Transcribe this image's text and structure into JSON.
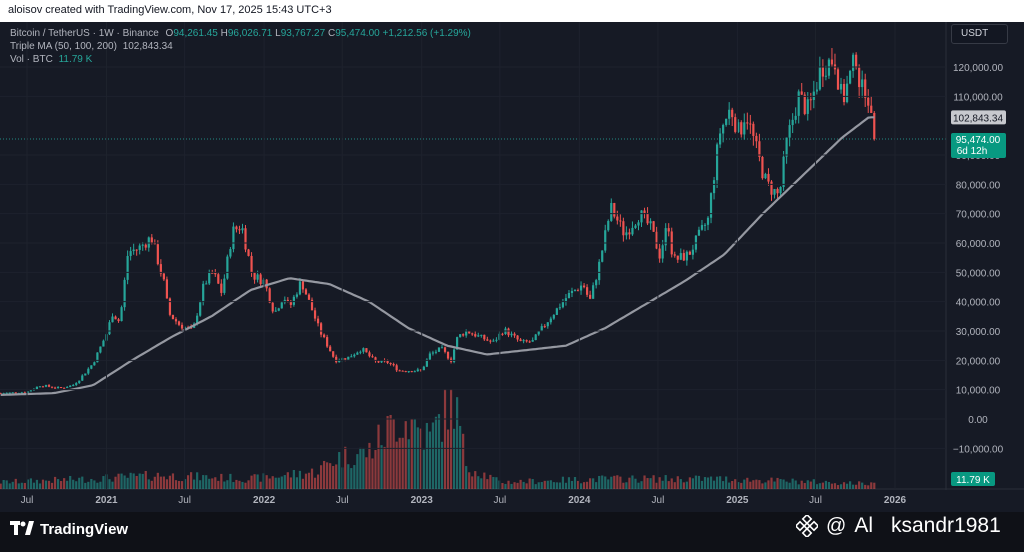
{
  "header": {
    "text": "aloisov created with TradingView.com, Nov 17, 2025 15:43 UTC+3"
  },
  "legend": {
    "symbol": "Bitcoin / TetherUS · 1W · Binance",
    "o_label": "O",
    "o": "94,261.45",
    "h_label": "H",
    "h": "96,026.71",
    "l_label": "L",
    "l": "93,767.27",
    "c_label": "C",
    "c": "95,474.00",
    "change": "+1,212.56 (+1.29%)",
    "ma_label": "Triple MA (50, 100, 200)",
    "ma_value": "102,843.34",
    "vol_label": "Vol · BTC",
    "vol_value": "11.79 K"
  },
  "currency": "USDT",
  "colors": {
    "up": "#26a69a",
    "down": "#ef5350",
    "ma": "#9598a1",
    "background": "#161a25",
    "price_tag": "#089981"
  },
  "price_tag": {
    "value": "95,474.00",
    "countdown": "6d 12h"
  },
  "ma_tag": {
    "value": "102,843.34"
  },
  "vol_tag": {
    "value": "11.79 K"
  },
  "footer": {
    "brand": "TradingView",
    "watermark_at": "@",
    "watermark_name1": "Al",
    "watermark_name2": "ksandr1981"
  },
  "chart_data": {
    "type": "candlestick",
    "title": "Bitcoin / TetherUS · 1W · Binance",
    "ylim": [
      -20000,
      130000
    ],
    "y_ticks": [
      120000,
      110000,
      90000,
      80000,
      70000,
      60000,
      50000,
      40000,
      30000,
      20000,
      10000,
      0,
      -10000
    ],
    "y_tick_labels": [
      "120,000.00",
      "110,000.00",
      "90,000.00",
      "80,000.00",
      "70,000.00",
      "60,000.00",
      "50,000.00",
      "40,000.00",
      "30,000.00",
      "20,000.00",
      "10,000.00",
      "0.00",
      "−10,000.00"
    ],
    "x_ticks": [
      {
        "date": "2020-07-01",
        "label": "Jul"
      },
      {
        "date": "2021-01-01",
        "label": "2021"
      },
      {
        "date": "2021-07-01",
        "label": "Jul"
      },
      {
        "date": "2022-01-01",
        "label": "2022"
      },
      {
        "date": "2022-07-01",
        "label": "Jul"
      },
      {
        "date": "2023-01-01",
        "label": "2023"
      },
      {
        "date": "2023-07-01",
        "label": "Jul"
      },
      {
        "date": "2024-01-01",
        "label": "2024"
      },
      {
        "date": "2024-07-01",
        "label": "Jul"
      },
      {
        "date": "2025-01-01",
        "label": "2025"
      },
      {
        "date": "2025-07-01",
        "label": "Jul"
      },
      {
        "date": "2026-01-01",
        "label": "2026"
      }
    ],
    "price_path": [
      [
        "2020-05-01",
        8800
      ],
      [
        "2020-07-01",
        9200
      ],
      [
        "2020-08-01",
        11500
      ],
      [
        "2020-09-15",
        10500
      ],
      [
        "2020-10-15",
        11500
      ],
      [
        "2020-11-01",
        13800
      ],
      [
        "2020-12-01",
        19000
      ],
      [
        "2021-01-01",
        29000
      ],
      [
        "2021-01-15",
        36000
      ],
      [
        "2021-02-01",
        33000
      ],
      [
        "2021-02-20",
        57000
      ],
      [
        "2021-03-15",
        58000
      ],
      [
        "2021-04-15",
        62000
      ],
      [
        "2021-05-15",
        46000
      ],
      [
        "2021-05-25",
        36000
      ],
      [
        "2021-06-20",
        32000
      ],
      [
        "2021-07-20",
        30000
      ],
      [
        "2021-08-15",
        46000
      ],
      [
        "2021-09-05",
        50000
      ],
      [
        "2021-09-25",
        43000
      ],
      [
        "2021-10-20",
        64000
      ],
      [
        "2021-11-10",
        66000
      ],
      [
        "2021-12-05",
        49000
      ],
      [
        "2022-01-01",
        47000
      ],
      [
        "2022-01-25",
        36000
      ],
      [
        "2022-02-15",
        42000
      ],
      [
        "2022-03-01",
        38000
      ],
      [
        "2022-03-28",
        47000
      ],
      [
        "2022-04-15",
        40000
      ],
      [
        "2022-05-10",
        30000
      ],
      [
        "2022-06-15",
        20000
      ],
      [
        "2022-07-15",
        21000
      ],
      [
        "2022-08-15",
        24000
      ],
      [
        "2022-09-15",
        19500
      ],
      [
        "2022-10-15",
        19300
      ],
      [
        "2022-11-10",
        16500
      ],
      [
        "2022-12-31",
        16500
      ],
      [
        "2023-01-20",
        22000
      ],
      [
        "2023-02-15",
        24000
      ],
      [
        "2023-03-10",
        20000
      ],
      [
        "2023-03-25",
        28000
      ],
      [
        "2023-04-15",
        30000
      ],
      [
        "2023-06-15",
        26000
      ],
      [
        "2023-07-10",
        30500
      ],
      [
        "2023-08-20",
        26000
      ],
      [
        "2023-09-15",
        26500
      ],
      [
        "2023-10-25",
        34500
      ],
      [
        "2023-12-05",
        42000
      ],
      [
        "2024-01-10",
        46000
      ],
      [
        "2024-01-25",
        40000
      ],
      [
        "2024-02-15",
        52000
      ],
      [
        "2024-03-14",
        72000
      ],
      [
        "2024-04-15",
        63000
      ],
      [
        "2024-05-20",
        70000
      ],
      [
        "2024-06-15",
        65000
      ],
      [
        "2024-07-05",
        56000
      ],
      [
        "2024-07-25",
        67000
      ],
      [
        "2024-08-05",
        54000
      ],
      [
        "2024-09-10",
        56000
      ],
      [
        "2024-10-25",
        68000
      ],
      [
        "2024-11-12",
        88000
      ],
      [
        "2024-11-22",
        98000
      ],
      [
        "2024-12-17",
        106000
      ],
      [
        "2025-01-05",
        97000
      ],
      [
        "2025-01-20",
        105000
      ],
      [
        "2025-02-25",
        86000
      ],
      [
        "2025-03-10",
        80000
      ],
      [
        "2025-04-08",
        76000
      ],
      [
        "2025-04-25",
        94000
      ],
      [
        "2025-05-22",
        110000
      ],
      [
        "2025-06-15",
        105000
      ],
      [
        "2025-07-14",
        120000
      ],
      [
        "2025-08-14",
        123000
      ],
      [
        "2025-09-01",
        108000
      ],
      [
        "2025-09-15",
        115000
      ],
      [
        "2025-10-06",
        125000
      ],
      [
        "2025-10-12",
        111000
      ],
      [
        "2025-10-28",
        114000
      ],
      [
        "2025-11-07",
        101000
      ],
      [
        "2025-11-17",
        95474
      ]
    ],
    "ma_path": [
      [
        "2020-05-01",
        8200
      ],
      [
        "2020-09-01",
        8800
      ],
      [
        "2020-12-01",
        11500
      ],
      [
        "2021-03-01",
        20000
      ],
      [
        "2021-06-01",
        28000
      ],
      [
        "2021-09-01",
        35000
      ],
      [
        "2021-12-01",
        44000
      ],
      [
        "2022-03-01",
        48000
      ],
      [
        "2022-06-01",
        46000
      ],
      [
        "2022-09-01",
        40000
      ],
      [
        "2022-12-01",
        31000
      ],
      [
        "2023-03-01",
        25000
      ],
      [
        "2023-06-01",
        22000
      ],
      [
        "2023-09-01",
        23500
      ],
      [
        "2023-12-01",
        25000
      ],
      [
        "2024-03-01",
        31000
      ],
      [
        "2024-06-01",
        39000
      ],
      [
        "2024-09-01",
        47000
      ],
      [
        "2024-12-01",
        56000
      ],
      [
        "2025-03-01",
        70000
      ],
      [
        "2025-06-01",
        83000
      ],
      [
        "2025-09-01",
        96000
      ],
      [
        "2025-11-01",
        102843
      ],
      [
        "2025-11-17",
        102843
      ]
    ],
    "volume_path": [
      [
        "2020-05-01",
        4
      ],
      [
        "2020-12-01",
        6
      ],
      [
        "2021-05-01",
        8
      ],
      [
        "2021-12-01",
        6
      ],
      [
        "2022-05-01",
        10
      ],
      [
        "2022-06-15",
        18
      ],
      [
        "2022-09-01",
        22
      ],
      [
        "2022-11-10",
        42
      ],
      [
        "2022-12-15",
        38
      ],
      [
        "2023-01-20",
        30
      ],
      [
        "2023-03-15",
        55
      ],
      [
        "2023-04-15",
        14
      ],
      [
        "2023-07-01",
        4
      ],
      [
        "2024-03-01",
        6
      ],
      [
        "2024-11-15",
        6
      ],
      [
        "2025-11-17",
        3
      ]
    ],
    "last_price": 95474,
    "ma_last": 102843.34
  }
}
